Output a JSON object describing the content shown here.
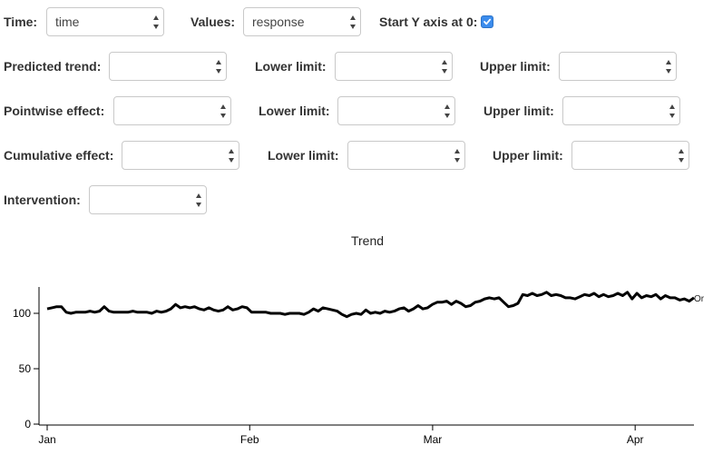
{
  "controls": {
    "time_label": "Time:",
    "time_value": "time",
    "values_label": "Values:",
    "values_value": "response",
    "start_y_label": "Start Y axis at 0:",
    "start_y_checked": true,
    "predicted_label": "Predicted trend:",
    "pointwise_label": "Pointwise effect:",
    "cumulative_label": "Cumulative effect:",
    "lower_label": "Lower limit:",
    "upper_label": "Upper limit:",
    "intervention_label": "Intervention:"
  },
  "chart_data": {
    "type": "line",
    "title": "Trend",
    "xlabel": "",
    "ylabel": "",
    "ylim": [
      0,
      120
    ],
    "yticks": [
      0,
      50,
      100
    ],
    "x_ticks": [
      "Jan",
      "Feb",
      "Mar",
      "Apr"
    ],
    "x_start": "2014-01-01",
    "x_end": "2014-04-10",
    "legend_entry": "Or",
    "series": [
      {
        "values": [
          104,
          105,
          106,
          106,
          101,
          100,
          101,
          101,
          101,
          102,
          101,
          102,
          106,
          102,
          101,
          101,
          101,
          101,
          102,
          101,
          101,
          101,
          100,
          102,
          101,
          102,
          104,
          108,
          105,
          106,
          105,
          106,
          104,
          103,
          105,
          103,
          102,
          103,
          106,
          103,
          104,
          106,
          105,
          101,
          101,
          101,
          101,
          100,
          100,
          100,
          99,
          100,
          100,
          100,
          99,
          101,
          104,
          102,
          105,
          104,
          103,
          102,
          99,
          97,
          99,
          100,
          99,
          103,
          100,
          101,
          100,
          102,
          101,
          102,
          104,
          105,
          102,
          104,
          107,
          104,
          105,
          108,
          110,
          110,
          111,
          108,
          111,
          109,
          106,
          107,
          110,
          111,
          113,
          114,
          113,
          114,
          110,
          106,
          107,
          109,
          117,
          116,
          118,
          116,
          117,
          119,
          116,
          117,
          116,
          114,
          114,
          113,
          115,
          117,
          116,
          118,
          115,
          117,
          115,
          116,
          118,
          116,
          119,
          113,
          118,
          114,
          116,
          115,
          117,
          113,
          116,
          114,
          114,
          112,
          113,
          111,
          114
        ]
      }
    ]
  }
}
